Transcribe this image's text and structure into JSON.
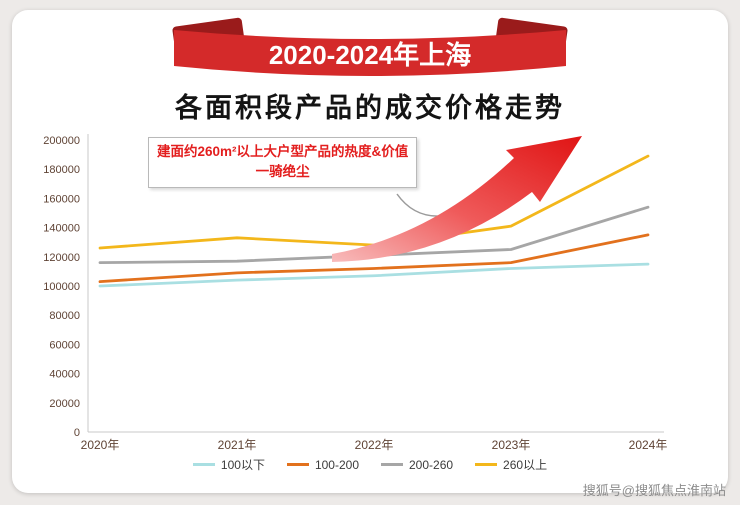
{
  "banner": {
    "title": "2020-2024年上海"
  },
  "page_title": "各面积段产品的成交价格走势",
  "annotation": {
    "line1": "建面约260m²以上大户型产品的热度&价值",
    "line2": "一骑绝尘"
  },
  "watermark": "搜狐号@搜狐焦点淮南站",
  "theme": {
    "ribbon_red": "#d42a2a",
    "ribbon_dark_red": "#9a1b1b",
    "arrow_red": "#e01414",
    "annotation_text_red": "#e31e1e",
    "page_background": "#edeae8",
    "axis_color": "#c9c9c9",
    "tick_text_color": "#5f4335"
  },
  "chart_data": {
    "type": "line",
    "title": "各面积段产品的成交价格走势",
    "categories": [
      "2020年",
      "2021年",
      "2022年",
      "2023年",
      "2024年"
    ],
    "series": [
      {
        "name": "100以下",
        "color": "#a9dfe2",
        "values": [
          100000,
          104000,
          107000,
          112000,
          115000
        ]
      },
      {
        "name": "100-200",
        "color": "#e2711d",
        "values": [
          103000,
          109000,
          112000,
          116000,
          135000
        ]
      },
      {
        "name": "200-260",
        "color": "#a6a6a6",
        "values": [
          116000,
          117000,
          121000,
          125000,
          154000
        ]
      },
      {
        "name": "260以上",
        "color": "#f3b71b",
        "values": [
          126000,
          133000,
          128000,
          141000,
          189000
        ]
      }
    ],
    "ylim": [
      0,
      200000
    ],
    "ytick_step": 20000,
    "grid": false,
    "legend_position": "bottom"
  }
}
